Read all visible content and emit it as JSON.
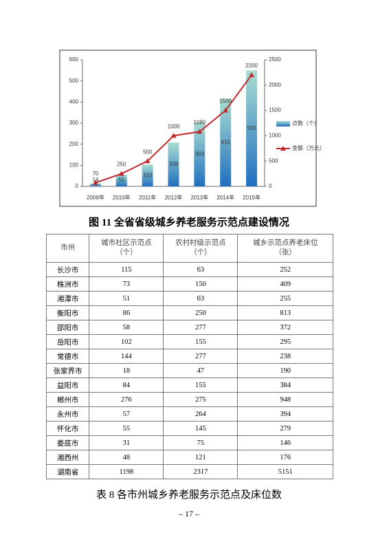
{
  "chart_data": {
    "type": "bar_line",
    "categories": [
      "2009年",
      "2010年",
      "2011年",
      "2012年",
      "2013年",
      "2014年",
      "2015年"
    ],
    "series": [
      {
        "name": "点数（个）",
        "color": "#1f6fc0",
        "values": [
          14,
          55,
          103,
          208,
          303,
          415,
          550
        ]
      },
      {
        "name": "金额（万元）",
        "color": "#c0272d",
        "axis": "y2",
        "values": [
          70,
          250,
          500,
          1000,
          1080,
          1500,
          2200
        ]
      }
    ],
    "ylim": [
      0,
      600
    ],
    "yticks": [
      0,
      100,
      200,
      300,
      400,
      500,
      600
    ],
    "y2lim": [
      0,
      2500
    ],
    "y2ticks": [
      0,
      500,
      1000,
      1500,
      2000,
      2500
    ],
    "legend": "right"
  },
  "figure_caption": "图 11  全省省级城乡养老服务示范点建设情况",
  "table": {
    "header": [
      [
        "市州"
      ],
      [
        "城市社区示范点",
        "（个）"
      ],
      [
        "农村村级示范点",
        "（个）"
      ],
      [
        "城乡示范点养老床位",
        "（张）"
      ]
    ],
    "rows": [
      [
        "长沙市",
        115,
        63,
        252
      ],
      [
        "株洲市",
        73,
        150,
        409
      ],
      [
        "湘潭市",
        51,
        63,
        255
      ],
      [
        "衡阳市",
        86,
        250,
        813
      ],
      [
        "邵阳市",
        58,
        277,
        372
      ],
      [
        "岳阳市",
        102,
        155,
        295
      ],
      [
        "常德市",
        144,
        277,
        238
      ],
      [
        "张家界市",
        18,
        47,
        190
      ],
      [
        "益阳市",
        84,
        155,
        384
      ],
      [
        "郴州市",
        276,
        275,
        948
      ],
      [
        "永州市",
        57,
        264,
        394
      ],
      [
        "怀化市",
        55,
        145,
        279
      ],
      [
        "娄底市",
        31,
        75,
        146
      ],
      [
        "湘西州",
        48,
        121,
        176
      ],
      [
        "湖南省",
        1198,
        2317,
        5151
      ]
    ]
  },
  "table_caption": "表 8  各市州城乡养老服务示范点及床位数",
  "page_number": "– 17 –"
}
